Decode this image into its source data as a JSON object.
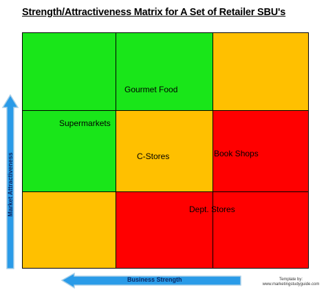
{
  "title": "Strength/Attractiveness Matrix for A Set of Retailer SBU's",
  "colors": {
    "green": "#19e619",
    "amber": "#ffc000",
    "red": "#ff0000",
    "arrow": "#2a9be8",
    "arrow_border": "#a8cfe8"
  },
  "grid": [
    [
      "green",
      "green",
      "amber"
    ],
    [
      "green",
      "amber",
      "red"
    ],
    [
      "amber",
      "red",
      "red"
    ]
  ],
  "sbus": {
    "gourmet_food": "Gourmet Food",
    "supermarkets": "Supermarkets",
    "c_stores": "C-Stores",
    "book_shops": "Book Shops",
    "dept_stores": "Dept. Stores"
  },
  "axes": {
    "y_label": "Market Attractiveness",
    "x_label": "Business Strength"
  },
  "credit": {
    "line1": "Template by:",
    "line2": "www.marketingstudyguide.com"
  }
}
